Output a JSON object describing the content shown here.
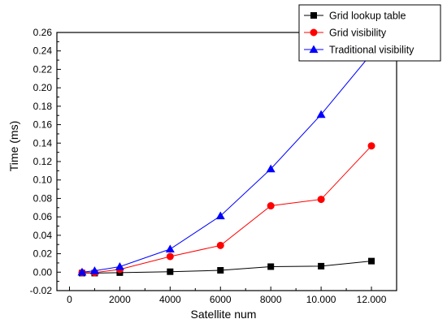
{
  "chart_data": {
    "type": "line",
    "xlabel": "Satellite num",
    "ylabel": "Time (ms)",
    "xlim": [
      -500,
      13000
    ],
    "ylim": [
      -0.02,
      0.26
    ],
    "x_ticks": [
      0,
      2000,
      4000,
      6000,
      8000,
      10000,
      12000
    ],
    "x_tick_labels": [
      "0",
      "2000",
      "4000",
      "6000",
      "8000",
      "10.000",
      "12.000"
    ],
    "y_ticks": [
      -0.02,
      0.0,
      0.02,
      0.04,
      0.06,
      0.08,
      0.1,
      0.12,
      0.14,
      0.16,
      0.18,
      0.2,
      0.22,
      0.24,
      0.26
    ],
    "y_tick_labels": [
      "-0.02",
      "0.00",
      "0.02",
      "0.04",
      "0.06",
      "0.08",
      "0.10",
      "0.12",
      "0.14",
      "0.16",
      "0.18",
      "0.20",
      "0.22",
      "0.24",
      "0.26"
    ],
    "grid": false,
    "legend_position": "top-right",
    "series": [
      {
        "name": "Grid lookup table",
        "color": "#000000",
        "marker": "square",
        "x": [
          500,
          1000,
          2000,
          4000,
          6000,
          8000,
          10000,
          12000
        ],
        "y": [
          -0.001,
          -0.001,
          -0.0005,
          0.0005,
          0.002,
          0.006,
          0.0065,
          0.012
        ]
      },
      {
        "name": "Grid visibility",
        "color": "#ff0000",
        "marker": "circle",
        "x": [
          500,
          1000,
          2000,
          4000,
          6000,
          8000,
          10000,
          12000
        ],
        "y": [
          -0.0005,
          -0.0005,
          0.003,
          0.017,
          0.029,
          0.072,
          0.079,
          0.137
        ]
      },
      {
        "name": "Traditional visibility",
        "color": "#0000ff",
        "marker": "triangle",
        "x": [
          500,
          1000,
          2000,
          4000,
          6000,
          8000,
          10000,
          12000
        ],
        "y": [
          0.0,
          0.0015,
          0.006,
          0.025,
          0.061,
          0.112,
          0.171,
          0.237
        ]
      }
    ]
  }
}
